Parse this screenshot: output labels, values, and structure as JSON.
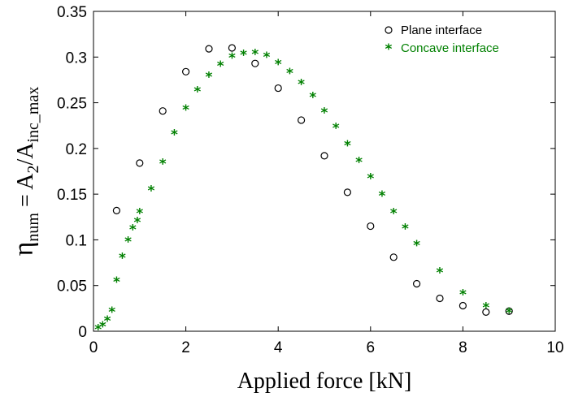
{
  "chart_data": {
    "type": "scatter",
    "xlabel": "Applied force [kN]",
    "ylabel": {
      "eta": "η",
      "eta_sub": "num",
      "eq": " = A",
      "a_sub": "2",
      "slash": "/A",
      "inc_sub": "inc_max"
    },
    "xlim": [
      0,
      10
    ],
    "ylim": [
      0,
      0.35
    ],
    "x_ticks": [
      "0",
      "2",
      "4",
      "6",
      "8",
      "10"
    ],
    "y_ticks": [
      "0",
      "0.05",
      "0.1",
      "0.15",
      "0.2",
      "0.25",
      "0.3",
      "0.35"
    ],
    "legend_position": "top-right",
    "series": [
      {
        "name": "Plane interface",
        "marker": "circle",
        "color": "#000000",
        "points": [
          [
            0.5,
            0.132
          ],
          [
            1.0,
            0.184
          ],
          [
            1.5,
            0.241
          ],
          [
            2.0,
            0.284
          ],
          [
            2.5,
            0.309
          ],
          [
            3.0,
            0.31
          ],
          [
            3.5,
            0.293
          ],
          [
            4.0,
            0.266
          ],
          [
            4.5,
            0.231
          ],
          [
            5.0,
            0.192
          ],
          [
            5.5,
            0.152
          ],
          [
            6.0,
            0.115
          ],
          [
            6.5,
            0.081
          ],
          [
            7.0,
            0.052
          ],
          [
            7.5,
            0.036
          ],
          [
            8.0,
            0.028
          ],
          [
            8.5,
            0.021
          ],
          [
            9.0,
            0.022
          ]
        ]
      },
      {
        "name": "Concave interface",
        "marker": "star",
        "color": "#008000",
        "points": [
          [
            0.1,
            0.005
          ],
          [
            0.2,
            0.008
          ],
          [
            0.3,
            0.014
          ],
          [
            0.4,
            0.024
          ],
          [
            0.5,
            0.057
          ],
          [
            0.625,
            0.083
          ],
          [
            0.75,
            0.101
          ],
          [
            0.85,
            0.114
          ],
          [
            0.95,
            0.122
          ],
          [
            1.0,
            0.132
          ],
          [
            1.25,
            0.157
          ],
          [
            1.5,
            0.186
          ],
          [
            1.75,
            0.218
          ],
          [
            2.0,
            0.245
          ],
          [
            2.25,
            0.265
          ],
          [
            2.5,
            0.281
          ],
          [
            2.75,
            0.293
          ],
          [
            3.0,
            0.302
          ],
          [
            3.25,
            0.305
          ],
          [
            3.5,
            0.306
          ],
          [
            3.75,
            0.303
          ],
          [
            4.0,
            0.295
          ],
          [
            4.25,
            0.285
          ],
          [
            4.5,
            0.273
          ],
          [
            4.75,
            0.259
          ],
          [
            5.0,
            0.242
          ],
          [
            5.25,
            0.225
          ],
          [
            5.5,
            0.206
          ],
          [
            5.75,
            0.188
          ],
          [
            6.0,
            0.17
          ],
          [
            6.25,
            0.151
          ],
          [
            6.5,
            0.132
          ],
          [
            6.75,
            0.115
          ],
          [
            7.0,
            0.097
          ],
          [
            7.5,
            0.067
          ],
          [
            8.0,
            0.043
          ],
          [
            8.5,
            0.029
          ],
          [
            9.0,
            0.023
          ]
        ]
      }
    ]
  }
}
